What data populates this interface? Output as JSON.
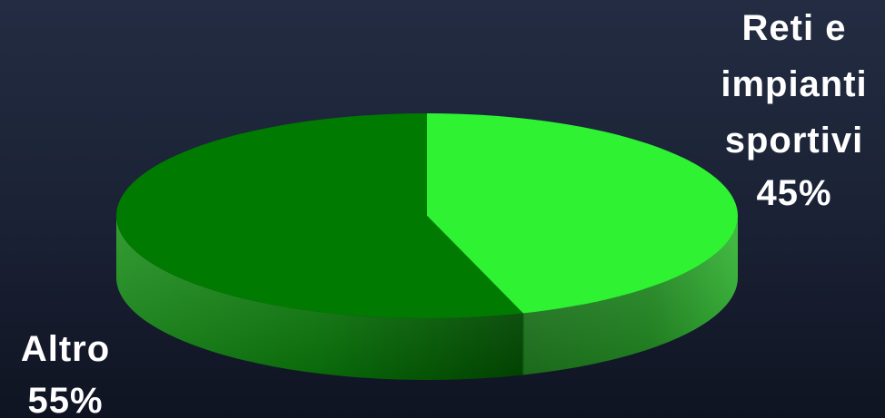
{
  "chart_data": {
    "type": "pie",
    "style": "3d",
    "slices": [
      {
        "label_lines": [
          "Reti e",
          "impianti",
          "sportivi"
        ],
        "percent_label": "45%",
        "value": 45,
        "color": "#2ef232"
      },
      {
        "label_lines": [
          "Altro"
        ],
        "percent_label": "55%",
        "value": 55,
        "color": "#007a00"
      }
    ]
  }
}
